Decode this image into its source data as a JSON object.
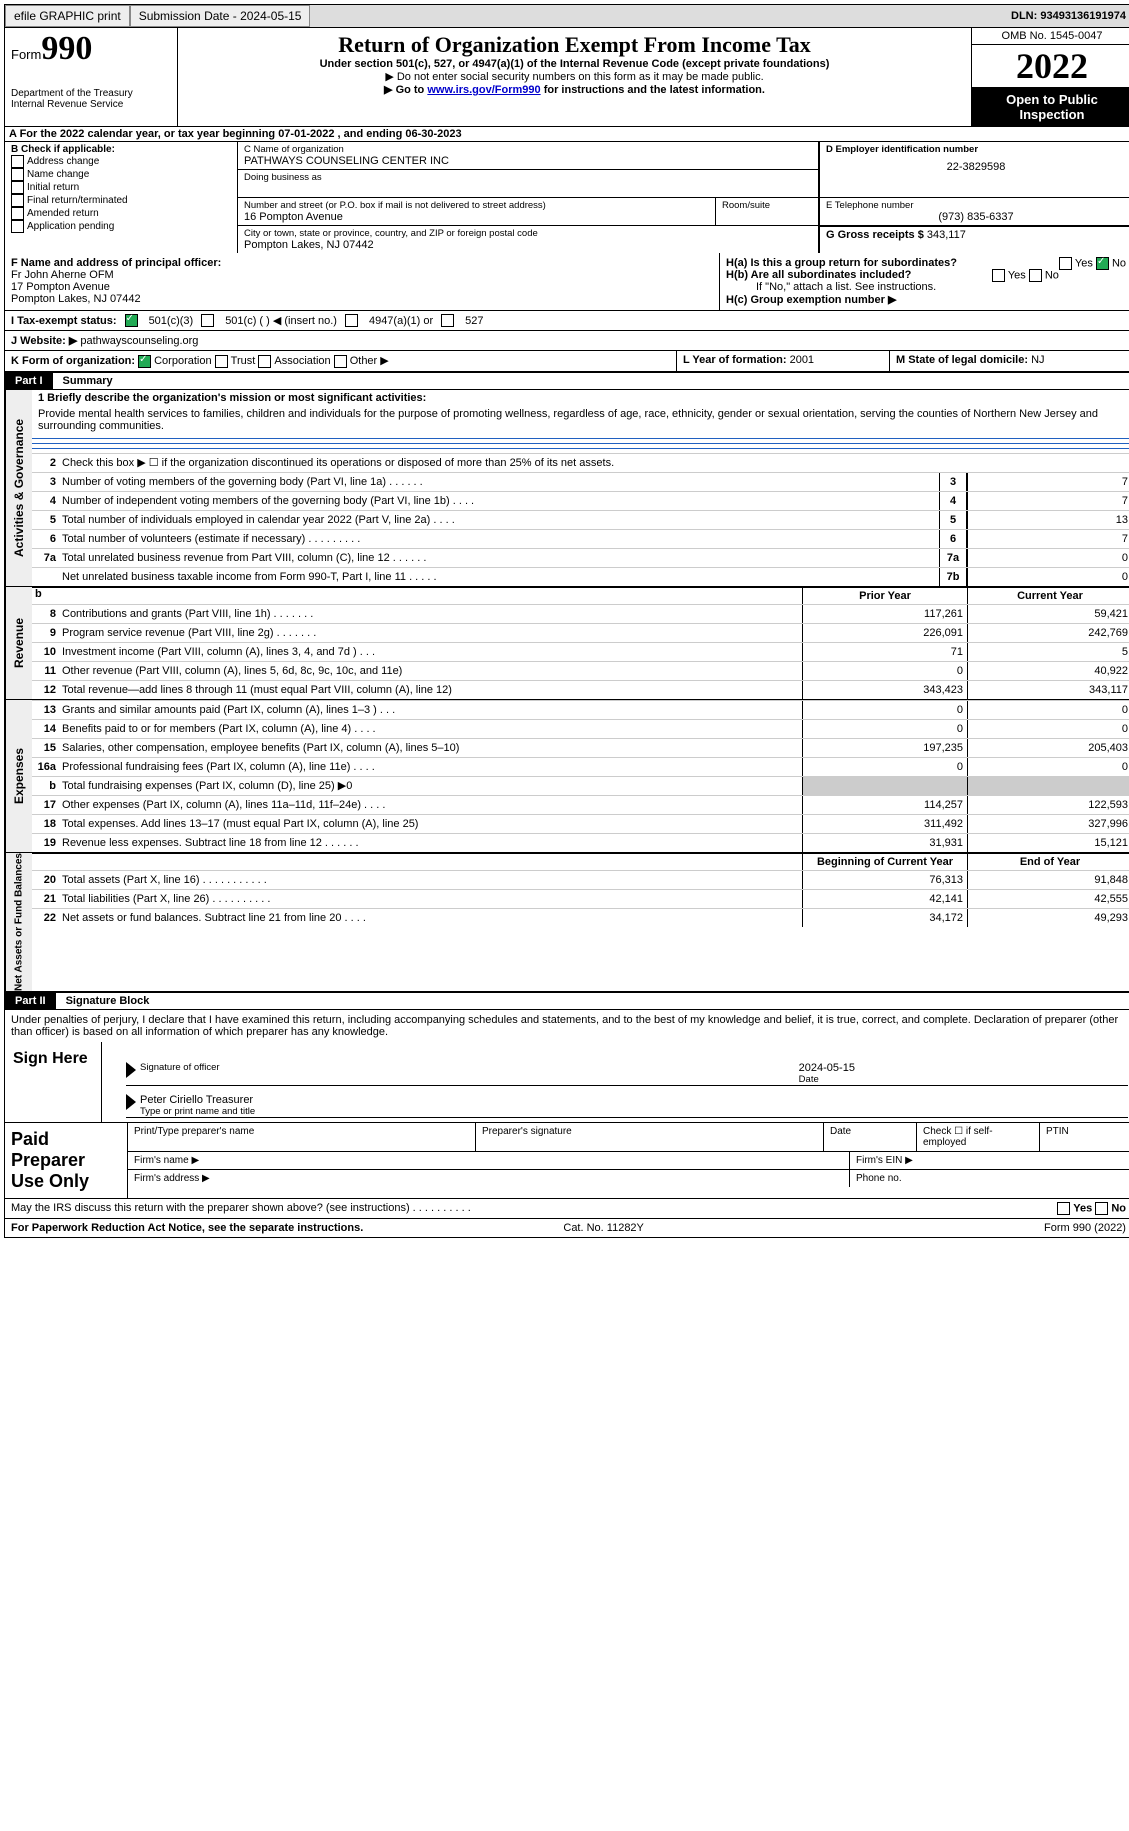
{
  "top": {
    "efile": "efile GRAPHIC print",
    "submission": "Submission Date - 2024-05-15",
    "dln": "DLN: 93493136191974"
  },
  "header": {
    "form_word": "Form",
    "form_no": "990",
    "dept": "Department of the Treasury",
    "irs": "Internal Revenue Service",
    "title": "Return of Organization Exempt From Income Tax",
    "sub": "Under section 501(c), 527, or 4947(a)(1) of the Internal Revenue Code (except private foundations)",
    "note1": "▶ Do not enter social security numbers on this form as it may be made public.",
    "note2_pre": "▶ Go to ",
    "note2_link": "www.irs.gov/Form990",
    "note2_post": " for instructions and the latest information.",
    "omb": "OMB No. 1545-0047",
    "year": "2022",
    "open": "Open to Public Inspection"
  },
  "a": "A For the 2022 calendar year, or tax year beginning 07-01-2022    , and ending 06-30-2023",
  "b": {
    "hdr": "B Check if applicable:",
    "o1": "Address change",
    "o2": "Name change",
    "o3": "Initial return",
    "o4": "Final return/terminated",
    "o5": "Amended return",
    "o6": "Application pending"
  },
  "c": {
    "name_lbl": "C Name of organization",
    "name": "PATHWAYS COUNSELING CENTER INC",
    "dba_lbl": "Doing business as",
    "addr_lbl": "Number and street (or P.O. box if mail is not delivered to street address)",
    "room_lbl": "Room/suite",
    "addr": "16 Pompton Avenue",
    "city_lbl": "City or town, state or province, country, and ZIP or foreign postal code",
    "city": "Pompton Lakes, NJ  07442"
  },
  "d": {
    "lbl": "D Employer identification number",
    "val": "22-3829598"
  },
  "e": {
    "lbl": "E Telephone number",
    "val": "(973) 835-6337"
  },
  "g": {
    "lbl": "G Gross receipts $",
    "val": "343,117"
  },
  "f": {
    "lbl": "F  Name and address of principal officer:",
    "l1": "Fr John Aherne OFM",
    "l2": "17 Pompton Avenue",
    "l3": "Pompton Lakes, NJ  07442"
  },
  "h": {
    "a": "H(a)  Is this a group return for subordinates?",
    "b": "H(b)  Are all subordinates included?",
    "bnote": "If \"No,\" attach a list. See instructions.",
    "c": "H(c)  Group exemption number ▶"
  },
  "i": {
    "lbl": "I   Tax-exempt status:",
    "o1": "501(c)(3)",
    "o2": "501(c) (  ) ◀ (insert no.)",
    "o3": "4947(a)(1) or",
    "o4": "527"
  },
  "j": {
    "lbl": "J   Website: ▶",
    "val": " pathwayscounseling.org"
  },
  "k": {
    "lbl": "K Form of organization:",
    "o1": "Corporation",
    "o2": "Trust",
    "o3": "Association",
    "o4": "Other ▶"
  },
  "l": {
    "lbl": "L Year of formation:",
    "val": "2001"
  },
  "m": {
    "lbl": "M State of legal domicile:",
    "val": "NJ"
  },
  "part1": {
    "tag": "Part I",
    "name": "Summary"
  },
  "mission_lbl": "1   Briefly describe the organization's mission or most significant activities:",
  "mission": "Provide mental health services to families, children and individuals for the purpose of promoting wellness, regardless of age, race, ethnicity, gender or sexual orientation, serving the counties of Northern New Jersey and surrounding communities.",
  "line2": "Check this box ▶ ☐ if the organization discontinued its operations or disposed of more than 25% of its net assets.",
  "section_ag": "Activities & Governance",
  "section_rev": "Revenue",
  "section_exp": "Expenses",
  "section_net": "Net Assets or Fund Balances",
  "yh_prior": "Prior Year",
  "yh_curr": "Current Year",
  "yh_beg": "Beginning of Current Year",
  "yh_end": "End of Year",
  "lines_ag": [
    {
      "n": "3",
      "d": "Number of voting members of the governing body (Part VI, line 1a)   .    .    .    .    .    .",
      "box": "3",
      "v": "7"
    },
    {
      "n": "4",
      "d": "Number of independent voting members of the governing body (Part VI, line 1b)   .    .    .    .",
      "box": "4",
      "v": "7"
    },
    {
      "n": "5",
      "d": "Total number of individuals employed in calendar year 2022 (Part V, line 2a)   .    .    .    .",
      "box": "5",
      "v": "13"
    },
    {
      "n": "6",
      "d": "Total number of volunteers (estimate if necessary)   .    .    .    .    .    .    .    .    .",
      "box": "6",
      "v": "7"
    },
    {
      "n": "7a",
      "d": "Total unrelated business revenue from Part VIII, column (C), line 12   .    .    .    .    .    .",
      "box": "7a",
      "v": "0"
    },
    {
      "n": "",
      "d": "Net unrelated business taxable income from Form 990-T, Part I, line 11   .    .    .    .    .",
      "box": "7b",
      "v": "0"
    }
  ],
  "lines_rev": [
    {
      "n": "8",
      "d": "Contributions and grants (Part VIII, line 1h)   .    .    .    .    .    .    .",
      "p": "117,261",
      "c": "59,421"
    },
    {
      "n": "9",
      "d": "Program service revenue (Part VIII, line 2g)   .    .    .    .    .    .    .",
      "p": "226,091",
      "c": "242,769"
    },
    {
      "n": "10",
      "d": "Investment income (Part VIII, column (A), lines 3, 4, and 7d )   .    .    .",
      "p": "71",
      "c": "5"
    },
    {
      "n": "11",
      "d": "Other revenue (Part VIII, column (A), lines 5, 6d, 8c, 9c, 10c, and 11e)",
      "p": "0",
      "c": "40,922"
    },
    {
      "n": "12",
      "d": "Total revenue—add lines 8 through 11 (must equal Part VIII, column (A), line 12)",
      "p": "343,423",
      "c": "343,117"
    }
  ],
  "lines_exp": [
    {
      "n": "13",
      "d": "Grants and similar amounts paid (Part IX, column (A), lines 1–3 )   .    .    .",
      "p": "0",
      "c": "0"
    },
    {
      "n": "14",
      "d": "Benefits paid to or for members (Part IX, column (A), line 4)   .    .    .    .",
      "p": "0",
      "c": "0"
    },
    {
      "n": "15",
      "d": "Salaries, other compensation, employee benefits (Part IX, column (A), lines 5–10)",
      "p": "197,235",
      "c": "205,403"
    },
    {
      "n": "16a",
      "d": "Professional fundraising fees (Part IX, column (A), line 11e)   .    .    .    .",
      "p": "0",
      "c": "0"
    },
    {
      "n": "b",
      "d": "Total fundraising expenses (Part IX, column (D), line 25) ▶0",
      "p": "shade",
      "c": "shade"
    },
    {
      "n": "17",
      "d": "Other expenses (Part IX, column (A), lines 11a–11d, 11f–24e)   .    .    .    .",
      "p": "114,257",
      "c": "122,593"
    },
    {
      "n": "18",
      "d": "Total expenses. Add lines 13–17 (must equal Part IX, column (A), line 25)",
      "p": "311,492",
      "c": "327,996"
    },
    {
      "n": "19",
      "d": "Revenue less expenses. Subtract line 18 from line 12   .    .    .    .    .    .",
      "p": "31,931",
      "c": "15,121"
    }
  ],
  "lines_net": [
    {
      "n": "20",
      "d": "Total assets (Part X, line 16)   .    .    .    .    .    .    .    .    .    .    .",
      "p": "76,313",
      "c": "91,848"
    },
    {
      "n": "21",
      "d": "Total liabilities (Part X, line 26)   .    .    .    .    .    .    .    .    .    .",
      "p": "42,141",
      "c": "42,555"
    },
    {
      "n": "22",
      "d": "Net assets or fund balances. Subtract line 21 from line 20   .    .    .    .",
      "p": "34,172",
      "c": "49,293"
    }
  ],
  "part2": {
    "tag": "Part II",
    "name": "Signature Block"
  },
  "penalties": "Under penalties of perjury, I declare that I have examined this return, including accompanying schedules and statements, and to the best of my knowledge and belief, it is true, correct, and complete. Declaration of preparer (other than officer) is based on all information of which preparer has any knowledge.",
  "sign": {
    "here": "Sign Here",
    "sig_lbl": "Signature of officer",
    "date": "2024-05-15",
    "date_lbl": "Date",
    "name": "Peter Ciriello Treasurer",
    "name_lbl": "Type or print name and title"
  },
  "paid": {
    "lbl": "Paid Preparer Use Only",
    "h1": "Print/Type preparer's name",
    "h2": "Preparer's signature",
    "h3": "Date",
    "h4": "Check ☐ if self-employed",
    "h5": "PTIN",
    "firm_name": "Firm's name   ▶",
    "firm_ein": "Firm's EIN ▶",
    "firm_addr": "Firm's address ▶",
    "phone": "Phone no."
  },
  "discuss": "May the IRS discuss this return with the preparer shown above? (see instructions)   .    .    .    .    .    .    .    .    .    .",
  "notice": "For Paperwork Reduction Act Notice, see the separate instructions.",
  "cat": "Cat. No. 11282Y",
  "formfoot": "Form 990 (2022)",
  "yes": "Yes",
  "no": "No"
}
